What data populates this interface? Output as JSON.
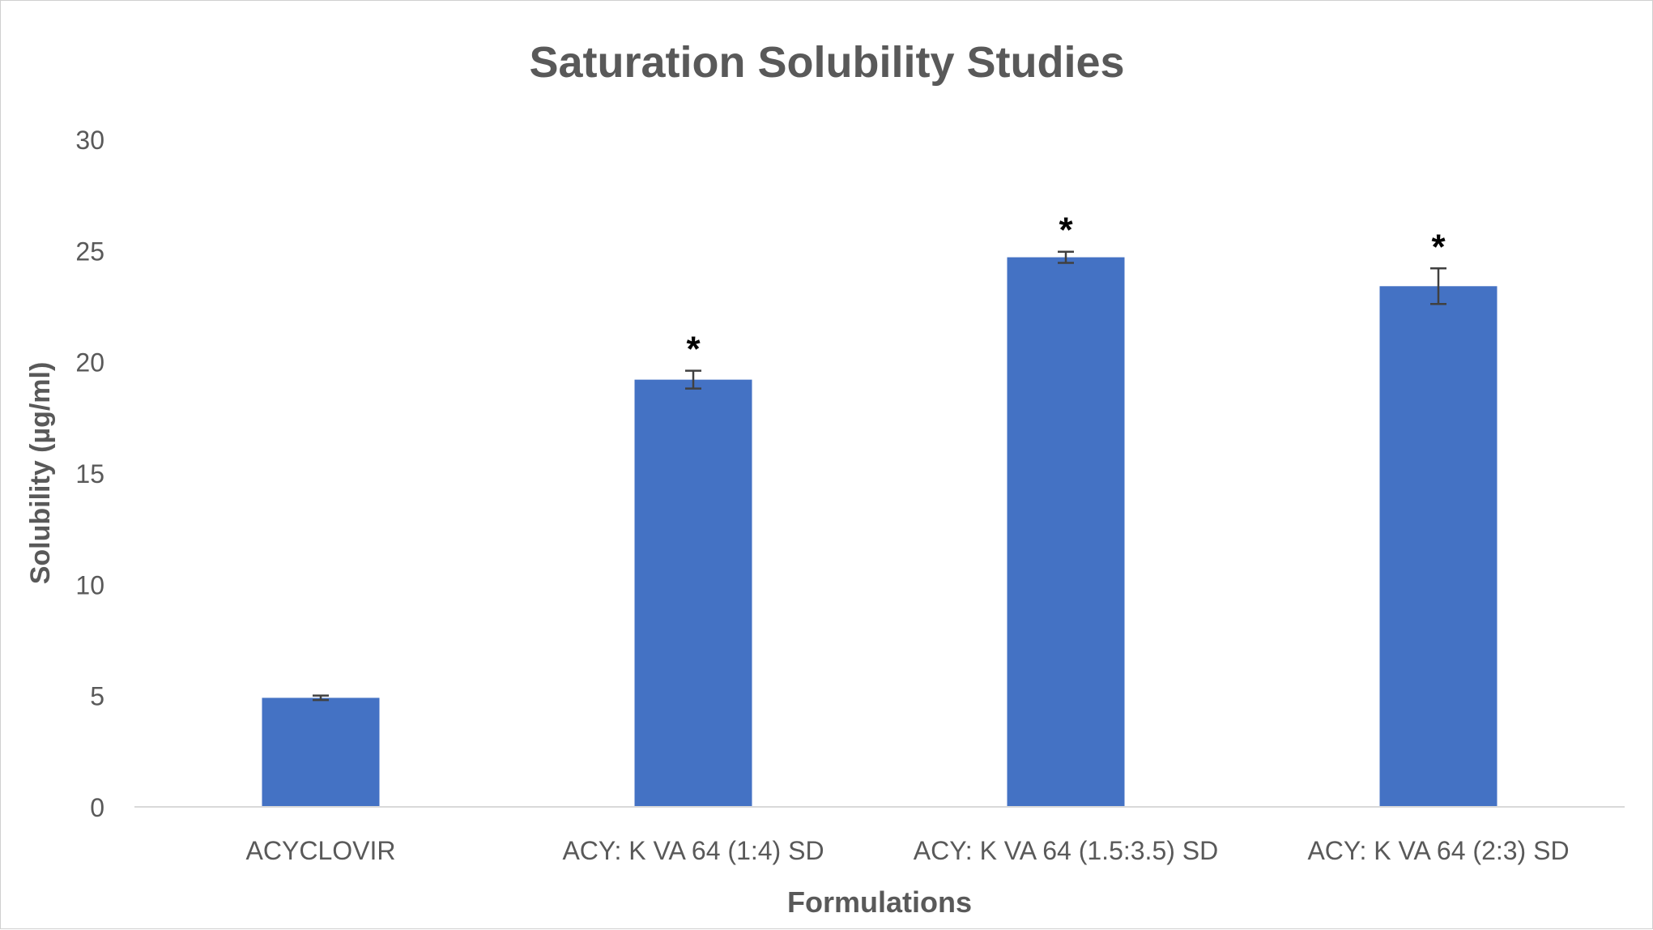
{
  "chart_data": {
    "type": "bar",
    "title": "Saturation Solubility Studies",
    "xlabel": "Formulations",
    "ylabel": "Solubility (µg/ml)",
    "categories": [
      "ACYCLOVIR",
      "ACY: K VA 64 (1:4) SD",
      "ACY: K VA 64 (1.5:3.5) SD",
      "ACY: K VA 64 (2:3) SD"
    ],
    "values": [
      4.9,
      19.2,
      24.7,
      23.4
    ],
    "error": [
      0.1,
      0.4,
      0.25,
      0.8
    ],
    "annotations": [
      "",
      "*",
      "*",
      "*"
    ],
    "ylim": [
      0,
      30
    ],
    "yticks": [
      0,
      5,
      10,
      15,
      20,
      25,
      30
    ],
    "grid": false,
    "legend": "none",
    "colors": {
      "bar": "#4472c4",
      "text": "#595959",
      "axis": "#d9d9d9",
      "errorbar": "#404040",
      "annotation": "#000000"
    }
  }
}
